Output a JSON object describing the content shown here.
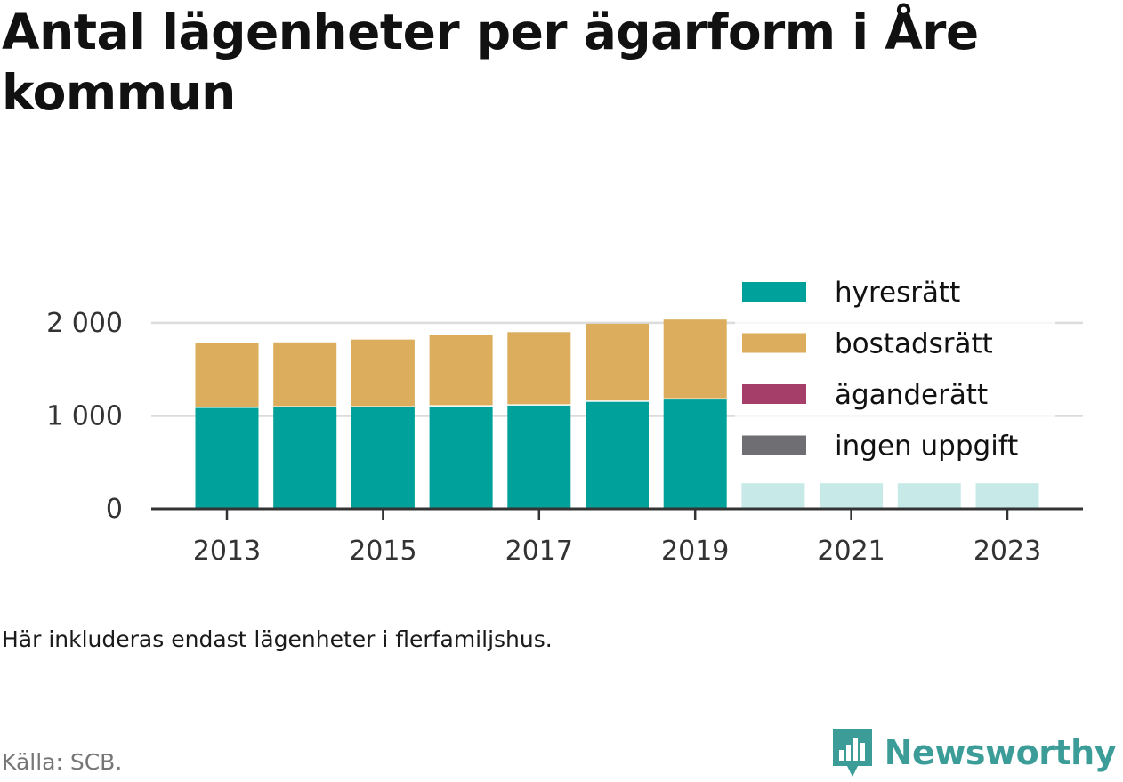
{
  "title": "Antal lägenheter per ägarform i Åre kommun",
  "note": "Här inkluderas endast lägenheter i flerfamiljshus.",
  "source": "Källa: SCB.",
  "brand": {
    "name": "Newsworthy",
    "icon": "newsworthy-logo-icon",
    "color": "#3b9c98"
  },
  "chart_data": {
    "type": "bar",
    "stacked": true,
    "title": "Antal lägenheter per ägarform i Åre kommun",
    "xlabel": "",
    "ylabel": "",
    "categories": [
      "2013",
      "2014",
      "2015",
      "2016",
      "2017",
      "2018",
      "2019",
      "2020",
      "2021",
      "2022",
      "2023"
    ],
    "x_tick_labels": [
      "2013",
      "2015",
      "2017",
      "2019",
      "2021",
      "2023"
    ],
    "y_ticks": [
      0,
      1000,
      2000
    ],
    "y_tick_labels": [
      "0",
      "1 000",
      "2 000"
    ],
    "ylim": [
      0,
      2200
    ],
    "grid": true,
    "legend_position": "right, overlapping plot",
    "series": [
      {
        "name": "hyresrätt",
        "color": "#00a19a",
        "values": [
          1100,
          1105,
          1105,
          1115,
          1125,
          1165,
          1190,
          290,
          290,
          290,
          290
        ]
      },
      {
        "name": "bostadsrätt",
        "color": "#dbad5c",
        "values": [
          700,
          700,
          730,
          770,
          790,
          840,
          860,
          null,
          null,
          null,
          null
        ]
      },
      {
        "name": "äganderätt",
        "color": "#a63e6a",
        "values": [
          0,
          0,
          0,
          0,
          0,
          0,
          0,
          null,
          null,
          null,
          null
        ]
      },
      {
        "name": "ingen uppgift",
        "color": "#6e6e73",
        "values": [
          0,
          0,
          0,
          0,
          0,
          0,
          0,
          0,
          0,
          0,
          0
        ]
      }
    ]
  }
}
